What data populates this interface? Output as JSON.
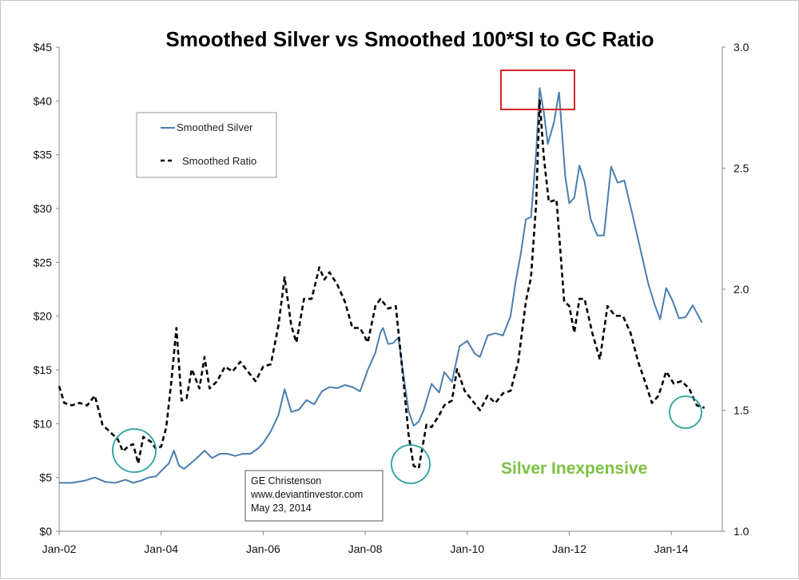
{
  "chart_data": {
    "type": "line",
    "title": "Smoothed Silver vs Smoothed 100*SI to GC Ratio",
    "xlabel": "",
    "ylabel": "",
    "x_ticks": [
      "Jan-02",
      "Jan-04",
      "Jan-06",
      "Jan-08",
      "Jan-10",
      "Jan-12",
      "Jan-14"
    ],
    "x_range": [
      2002.0,
      2015.0
    ],
    "y_left": {
      "ticks": [
        "$0",
        "$5",
        "$10",
        "$15",
        "$20",
        "$25",
        "$30",
        "$35",
        "$40",
        "$45"
      ],
      "range": [
        0,
        45
      ]
    },
    "y_right": {
      "ticks": [
        "1.0",
        "1.5",
        "2.0",
        "2.5",
        "3.0"
      ],
      "range": [
        1.0,
        3.0
      ]
    },
    "legend": {
      "placement": "top-left",
      "items": [
        "Smoothed Silver",
        "Smoothed Ratio"
      ]
    },
    "series": [
      {
        "name": "Smoothed Silver",
        "axis": "left",
        "color": "#4a7eb0",
        "style": "solid",
        "points": [
          [
            2002.0,
            4.5
          ],
          [
            2002.25,
            4.5
          ],
          [
            2002.5,
            4.7
          ],
          [
            2002.7,
            5.0
          ],
          [
            2002.9,
            4.6
          ],
          [
            2003.1,
            4.5
          ],
          [
            2003.3,
            4.8
          ],
          [
            2003.45,
            4.5
          ],
          [
            2003.6,
            4.7
          ],
          [
            2003.75,
            5.0
          ],
          [
            2003.9,
            5.1
          ],
          [
            2004.0,
            5.6
          ],
          [
            2004.15,
            6.3
          ],
          [
            2004.25,
            7.5
          ],
          [
            2004.35,
            6.1
          ],
          [
            2004.45,
            5.8
          ],
          [
            2004.55,
            6.2
          ],
          [
            2004.7,
            6.8
          ],
          [
            2004.85,
            7.5
          ],
          [
            2005.0,
            6.8
          ],
          [
            2005.15,
            7.2
          ],
          [
            2005.3,
            7.2
          ],
          [
            2005.45,
            7.0
          ],
          [
            2005.6,
            7.2
          ],
          [
            2005.75,
            7.2
          ],
          [
            2005.9,
            7.7
          ],
          [
            2006.0,
            8.2
          ],
          [
            2006.15,
            9.3
          ],
          [
            2006.3,
            10.8
          ],
          [
            2006.42,
            13.2
          ],
          [
            2006.55,
            11.1
          ],
          [
            2006.7,
            11.3
          ],
          [
            2006.85,
            12.2
          ],
          [
            2007.0,
            11.8
          ],
          [
            2007.15,
            13.0
          ],
          [
            2007.3,
            13.4
          ],
          [
            2007.45,
            13.3
          ],
          [
            2007.6,
            13.6
          ],
          [
            2007.75,
            13.4
          ],
          [
            2007.9,
            13.0
          ],
          [
            2008.05,
            15.0
          ],
          [
            2008.2,
            16.6
          ],
          [
            2008.3,
            18.5
          ],
          [
            2008.35,
            18.9
          ],
          [
            2008.45,
            17.4
          ],
          [
            2008.55,
            17.5
          ],
          [
            2008.65,
            18.0
          ],
          [
            2008.75,
            14.5
          ],
          [
            2008.85,
            11.2
          ],
          [
            2008.95,
            9.8
          ],
          [
            2009.05,
            10.2
          ],
          [
            2009.15,
            11.3
          ],
          [
            2009.3,
            13.7
          ],
          [
            2009.45,
            12.9
          ],
          [
            2009.55,
            14.8
          ],
          [
            2009.7,
            13.9
          ],
          [
            2009.85,
            17.2
          ],
          [
            2010.0,
            17.7
          ],
          [
            2010.15,
            16.5
          ],
          [
            2010.25,
            16.2
          ],
          [
            2010.4,
            18.2
          ],
          [
            2010.55,
            18.4
          ],
          [
            2010.7,
            18.2
          ],
          [
            2010.85,
            20.0
          ],
          [
            2010.95,
            23.2
          ],
          [
            2011.05,
            25.8
          ],
          [
            2011.15,
            29.0
          ],
          [
            2011.25,
            29.2
          ],
          [
            2011.35,
            35.2
          ],
          [
            2011.42,
            41.2
          ],
          [
            2011.5,
            39.0
          ],
          [
            2011.58,
            36.0
          ],
          [
            2011.7,
            38.0
          ],
          [
            2011.8,
            40.8
          ],
          [
            2011.92,
            33.0
          ],
          [
            2012.0,
            30.5
          ],
          [
            2012.1,
            31.0
          ],
          [
            2012.2,
            34.0
          ],
          [
            2012.3,
            32.5
          ],
          [
            2012.42,
            29.0
          ],
          [
            2012.55,
            27.5
          ],
          [
            2012.68,
            27.5
          ],
          [
            2012.82,
            33.9
          ],
          [
            2012.95,
            32.4
          ],
          [
            2013.08,
            32.6
          ],
          [
            2013.22,
            29.8
          ],
          [
            2013.38,
            26.5
          ],
          [
            2013.55,
            23.0
          ],
          [
            2013.68,
            21.0
          ],
          [
            2013.78,
            19.7
          ],
          [
            2013.9,
            22.6
          ],
          [
            2014.02,
            21.5
          ],
          [
            2014.15,
            19.8
          ],
          [
            2014.28,
            19.9
          ],
          [
            2014.42,
            21.0
          ],
          [
            2014.6,
            19.4
          ]
        ]
      },
      {
        "name": "Smoothed Ratio",
        "axis": "right",
        "color": "#000000",
        "style": "dashed",
        "points": [
          [
            2002.0,
            1.6
          ],
          [
            2002.1,
            1.53
          ],
          [
            2002.25,
            1.52
          ],
          [
            2002.4,
            1.53
          ],
          [
            2002.55,
            1.52
          ],
          [
            2002.7,
            1.56
          ],
          [
            2002.85,
            1.44
          ],
          [
            2003.0,
            1.41
          ],
          [
            2003.15,
            1.38
          ],
          [
            2003.25,
            1.33
          ],
          [
            2003.35,
            1.35
          ],
          [
            2003.45,
            1.36
          ],
          [
            2003.55,
            1.28
          ],
          [
            2003.65,
            1.39
          ],
          [
            2003.8,
            1.37
          ],
          [
            2003.9,
            1.34
          ],
          [
            2004.0,
            1.35
          ],
          [
            2004.1,
            1.43
          ],
          [
            2004.2,
            1.62
          ],
          [
            2004.3,
            1.84
          ],
          [
            2004.4,
            1.54
          ],
          [
            2004.5,
            1.55
          ],
          [
            2004.6,
            1.67
          ],
          [
            2004.75,
            1.59
          ],
          [
            2004.85,
            1.72
          ],
          [
            2004.95,
            1.59
          ],
          [
            2005.1,
            1.62
          ],
          [
            2005.25,
            1.68
          ],
          [
            2005.4,
            1.66
          ],
          [
            2005.55,
            1.7
          ],
          [
            2005.7,
            1.66
          ],
          [
            2005.85,
            1.62
          ],
          [
            2006.0,
            1.68
          ],
          [
            2006.15,
            1.69
          ],
          [
            2006.3,
            1.85
          ],
          [
            2006.42,
            2.05
          ],
          [
            2006.55,
            1.85
          ],
          [
            2006.65,
            1.78
          ],
          [
            2006.8,
            1.96
          ],
          [
            2006.95,
            1.96
          ],
          [
            2007.1,
            2.09
          ],
          [
            2007.2,
            2.04
          ],
          [
            2007.3,
            2.07
          ],
          [
            2007.45,
            2.02
          ],
          [
            2007.6,
            1.95
          ],
          [
            2007.75,
            1.84
          ],
          [
            2007.9,
            1.84
          ],
          [
            2008.05,
            1.78
          ],
          [
            2008.2,
            1.93
          ],
          [
            2008.3,
            1.96
          ],
          [
            2008.45,
            1.92
          ],
          [
            2008.6,
            1.93
          ],
          [
            2008.75,
            1.62
          ],
          [
            2008.85,
            1.4
          ],
          [
            2008.95,
            1.27
          ],
          [
            2009.05,
            1.26
          ],
          [
            2009.2,
            1.44
          ],
          [
            2009.3,
            1.43
          ],
          [
            2009.45,
            1.48
          ],
          [
            2009.55,
            1.52
          ],
          [
            2009.7,
            1.54
          ],
          [
            2009.8,
            1.67
          ],
          [
            2009.95,
            1.58
          ],
          [
            2010.1,
            1.54
          ],
          [
            2010.25,
            1.5
          ],
          [
            2010.4,
            1.56
          ],
          [
            2010.55,
            1.53
          ],
          [
            2010.7,
            1.57
          ],
          [
            2010.85,
            1.58
          ],
          [
            2011.0,
            1.7
          ],
          [
            2011.15,
            1.95
          ],
          [
            2011.25,
            2.05
          ],
          [
            2011.35,
            2.35
          ],
          [
            2011.42,
            2.78
          ],
          [
            2011.5,
            2.55
          ],
          [
            2011.6,
            2.36
          ],
          [
            2011.75,
            2.37
          ],
          [
            2011.9,
            1.95
          ],
          [
            2012.0,
            1.93
          ],
          [
            2012.1,
            1.82
          ],
          [
            2012.2,
            1.96
          ],
          [
            2012.3,
            1.96
          ],
          [
            2012.45,
            1.82
          ],
          [
            2012.6,
            1.71
          ],
          [
            2012.75,
            1.93
          ],
          [
            2012.9,
            1.89
          ],
          [
            2013.05,
            1.89
          ],
          [
            2013.2,
            1.82
          ],
          [
            2013.35,
            1.7
          ],
          [
            2013.5,
            1.61
          ],
          [
            2013.62,
            1.53
          ],
          [
            2013.75,
            1.56
          ],
          [
            2013.9,
            1.66
          ],
          [
            2014.05,
            1.61
          ],
          [
            2014.2,
            1.62
          ],
          [
            2014.35,
            1.59
          ],
          [
            2014.5,
            1.52
          ],
          [
            2014.65,
            1.51
          ]
        ]
      }
    ],
    "annotations": {
      "credit": [
        "GE Christenson",
        "www.deviantinvestor.com",
        "May 23, 2014"
      ],
      "note": "Silver Inexpensive",
      "highlight_box_color": "#d62728",
      "circle_color": "#2aa198"
    }
  }
}
